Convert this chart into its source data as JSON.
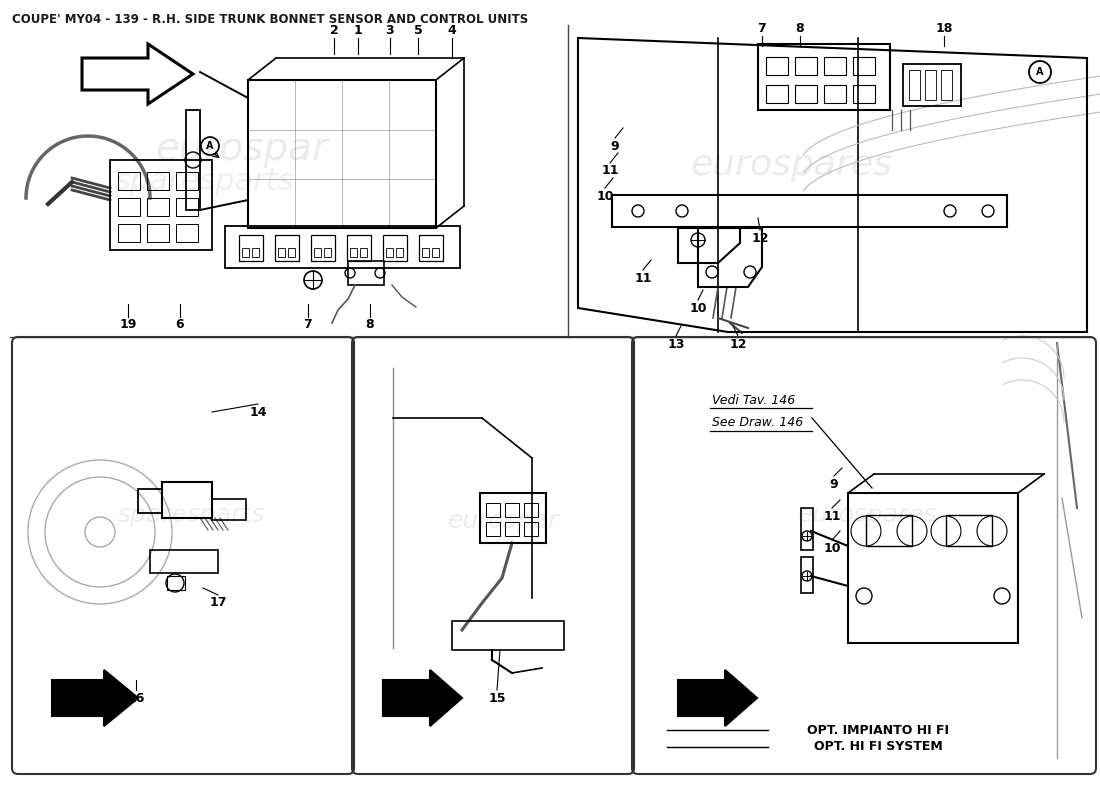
{
  "title": "COUPE' MY04 - 139 - R.H. SIDE TRUNK BONNET SENSOR AND CONTROL UNITS",
  "title_fontsize": 8.5,
  "bg_color": "#ffffff",
  "line_color": "#000000",
  "fig_width": 11.0,
  "fig_height": 8.0,
  "dpi": 100,
  "watermark_color": "#cccccc",
  "opt_text1": "OPT. IMPIANTO HI FI",
  "opt_text2": "OPT. HI FI SYSTEM",
  "vedi_text1": "Vedi Tav. 146",
  "vedi_text2": "See Draw. 146"
}
